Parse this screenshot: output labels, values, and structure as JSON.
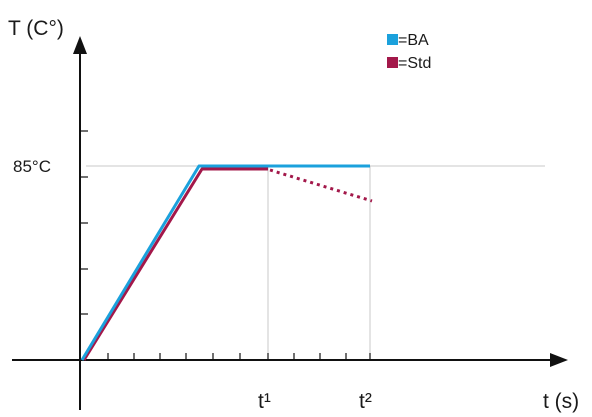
{
  "labels": {
    "y_axis": "T (C°)",
    "x_axis": "t (s)",
    "ref_temp": "85°C",
    "t1": "t¹",
    "t2": "t²"
  },
  "legend": [
    {
      "label": "=BA",
      "color": "#1ba1dc"
    },
    {
      "label": "=Std",
      "color": "#a3184a"
    }
  ],
  "colors": {
    "ba": "#1ba1dc",
    "std": "#a3184a",
    "axis": "#111111",
    "guide": "#c8c8c8"
  }
}
